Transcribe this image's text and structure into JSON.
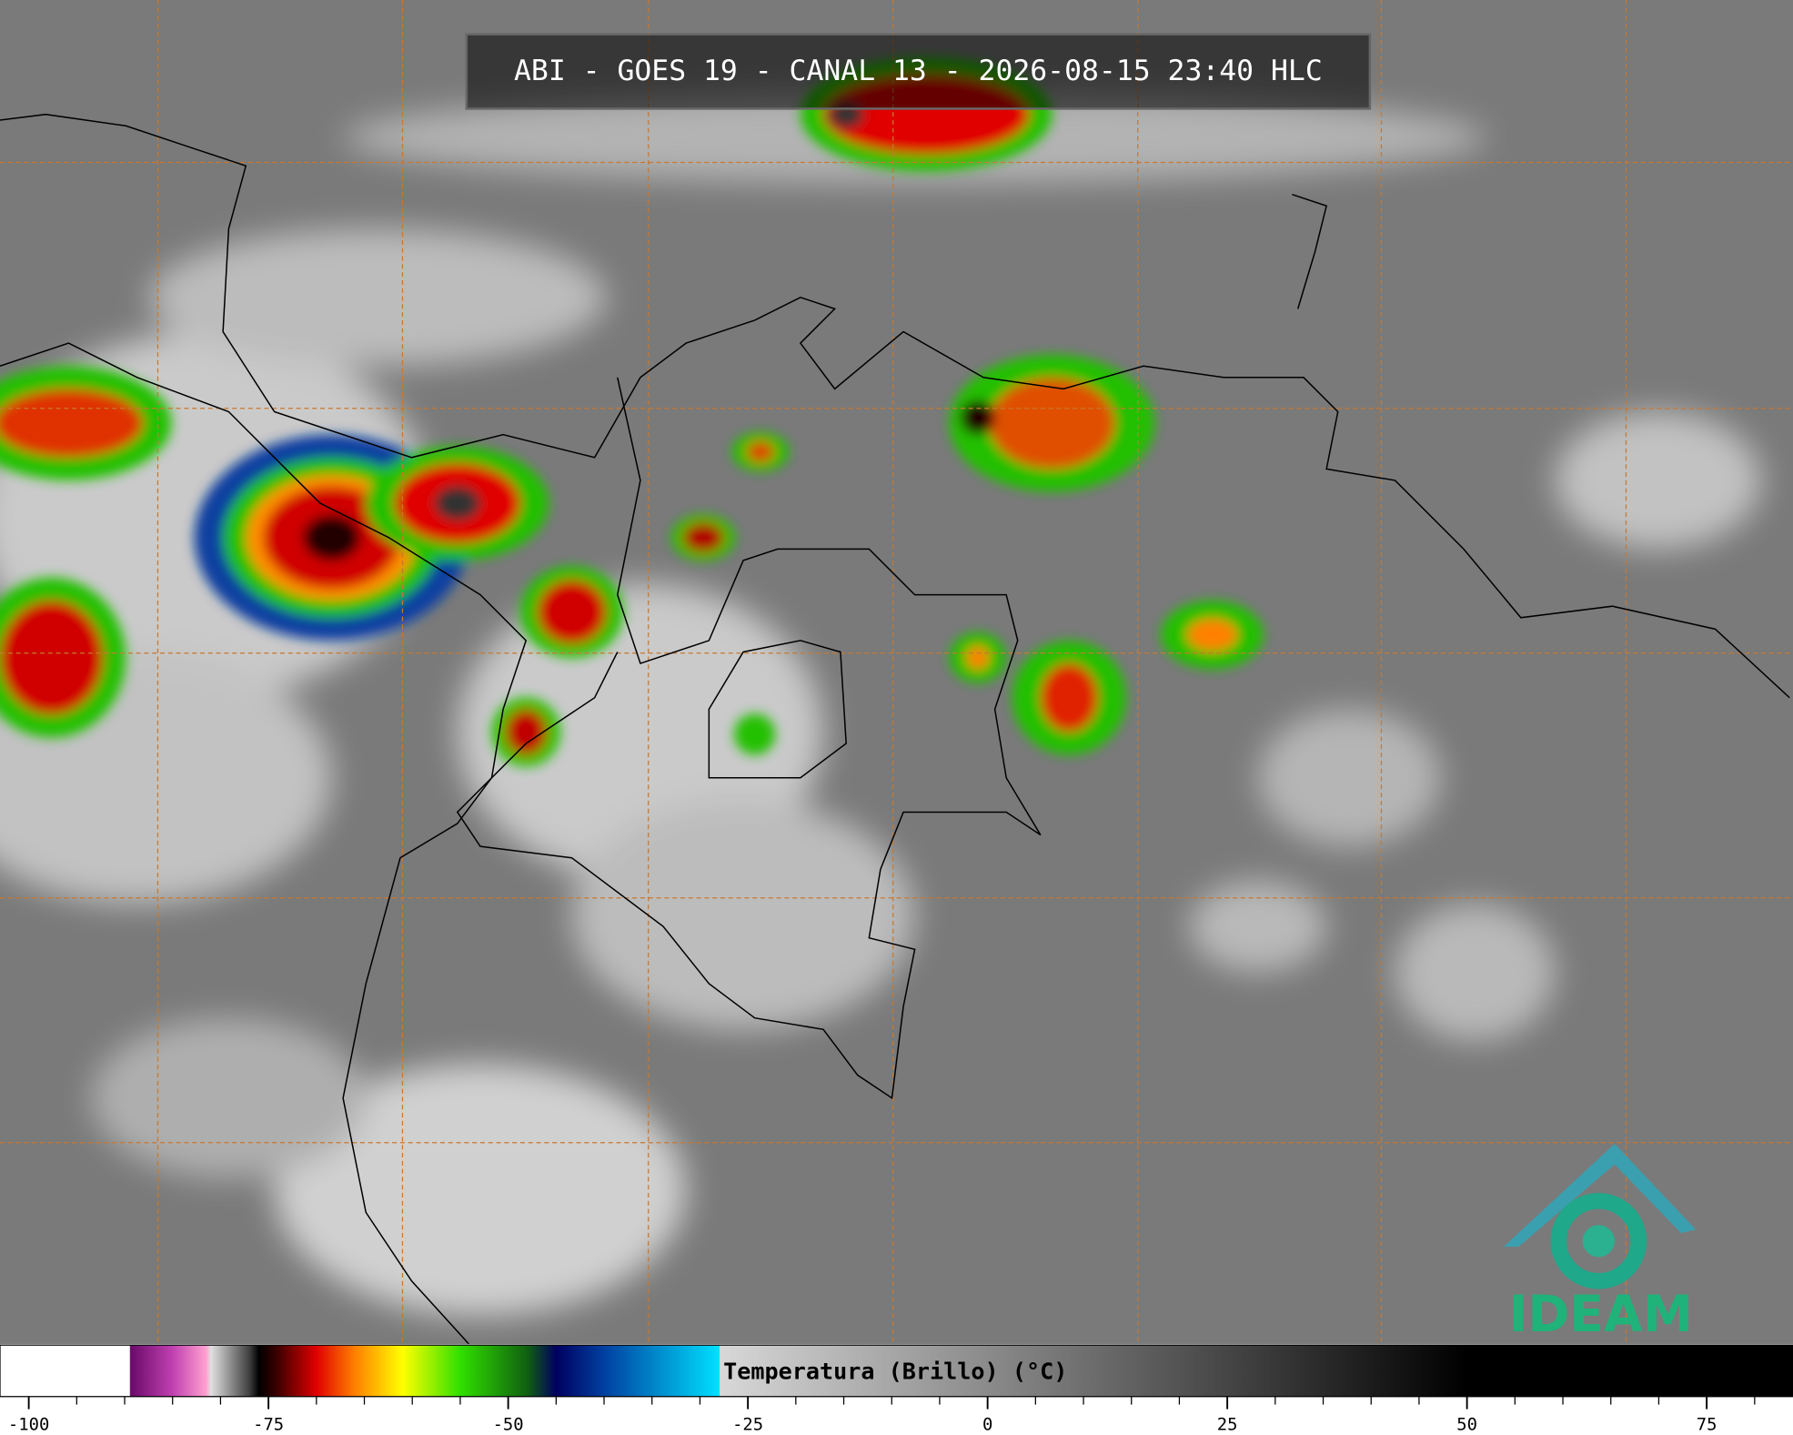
{
  "header": {
    "title": "ABI - GOES 19 - CANAL 13 - 2026-08-15 23:40 HLC"
  },
  "colorbar": {
    "label": "Temperatura (Brillo) (°C)",
    "lim": [
      -103,
      84
    ],
    "ticks": [
      -100,
      -75,
      -50,
      -25,
      0,
      25,
      50,
      75
    ],
    "minor_ticks": [
      -95,
      -90,
      -85,
      -80,
      -70,
      -65,
      -60,
      -55,
      -45,
      -40,
      -35,
      -30,
      -20,
      -15,
      -10,
      -5,
      5,
      10,
      15,
      20,
      30,
      35,
      40,
      45,
      55,
      60,
      65,
      70,
      80
    ],
    "stops": [
      {
        "value": -103,
        "color": "#ffffff"
      },
      {
        "value": -89.5,
        "color": "#ffffff"
      },
      {
        "value": -89.4,
        "color": "#6a0a6a"
      },
      {
        "value": -85,
        "color": "#c040b0"
      },
      {
        "value": -81.5,
        "color": "#ffa0d0"
      },
      {
        "value": -81,
        "color": "#e0e0e0"
      },
      {
        "value": -77,
        "color": "#404040"
      },
      {
        "value": -76,
        "color": "#000000"
      },
      {
        "value": -74,
        "color": "#400000"
      },
      {
        "value": -70,
        "color": "#e00000"
      },
      {
        "value": -66,
        "color": "#ff8000"
      },
      {
        "value": -61,
        "color": "#ffff00"
      },
      {
        "value": -55,
        "color": "#30e000"
      },
      {
        "value": -48,
        "color": "#106010"
      },
      {
        "value": -45,
        "color": "#000060"
      },
      {
        "value": -40,
        "color": "#0040a0"
      },
      {
        "value": -28,
        "color": "#00e0ff"
      },
      {
        "value": -27.9,
        "color": "#d8d8d8"
      },
      {
        "value": 50,
        "color": "#000000"
      },
      {
        "value": 84,
        "color": "#000000"
      }
    ]
  },
  "logo": {
    "text": "IDEAM"
  }
}
